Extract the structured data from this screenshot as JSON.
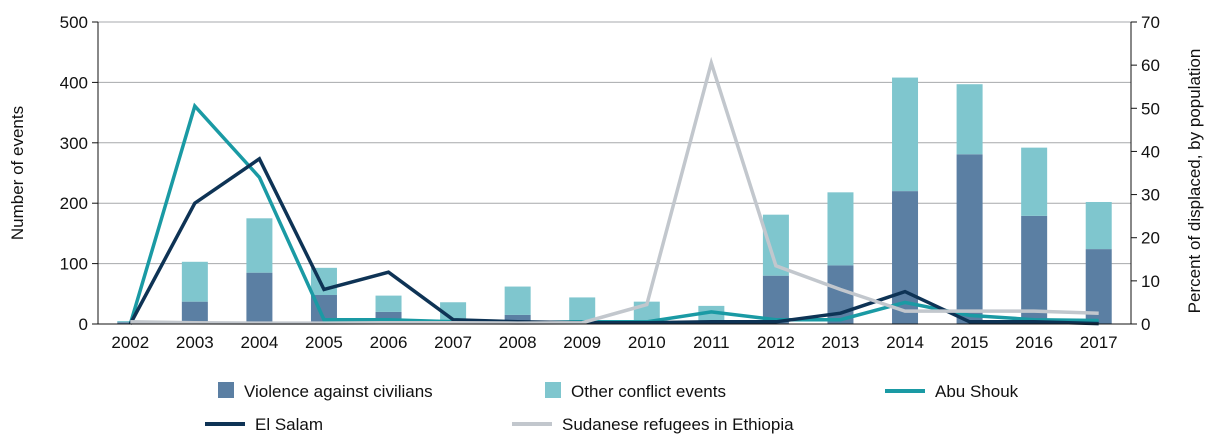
{
  "chart_data": {
    "type": "bar",
    "title": "",
    "categories": [
      "2002",
      "2003",
      "2004",
      "2005",
      "2006",
      "2007",
      "2008",
      "2009",
      "2010",
      "2011",
      "2012",
      "2013",
      "2014",
      "2015",
      "2016",
      "2017"
    ],
    "ylabel_left": "Number of events",
    "ylabel_right": "Percent of displaced, by population",
    "ylim_left": [
      0,
      500
    ],
    "yticks_left": [
      "0",
      "100",
      "200",
      "300",
      "400",
      "500"
    ],
    "ylim_right": [
      0,
      70
    ],
    "yticks_right": [
      "0",
      "10",
      "20",
      "30",
      "40",
      "50",
      "60",
      "70"
    ],
    "grid": "horizontal",
    "legend_position": "bottom",
    "bar_series": [
      {
        "name": "Violence against civilians",
        "color": "#5b7fa3",
        "values": [
          3,
          37,
          85,
          48,
          20,
          2,
          15,
          2,
          2,
          3,
          80,
          97,
          220,
          281,
          179,
          124
        ]
      },
      {
        "name": "Other conflict events",
        "color": "#7fc6ce",
        "values": [
          2,
          66,
          90,
          45,
          27,
          34,
          47,
          42,
          35,
          27,
          101,
          121,
          188,
          116,
          113,
          78
        ]
      }
    ],
    "line_series": [
      {
        "name": "Abu Shouk",
        "color": "#1a9aa4",
        "values": [
          0,
          50.5,
          34,
          1,
          1,
          0.5,
          0.3,
          0.5,
          0.5,
          2.8,
          1,
          1,
          5,
          2,
          1,
          0.8
        ]
      },
      {
        "name": "El Salam",
        "color": "#0e3355",
        "values": [
          0,
          28,
          38.3,
          8,
          12,
          1,
          0.5,
          0.3,
          0.3,
          0.5,
          0.5,
          2.5,
          7.5,
          0.5,
          0.5,
          0.1
        ]
      },
      {
        "name": "Sudanese refugees in Ethiopia",
        "color": "#c2c7cd",
        "values": [
          0.5,
          0.3,
          0.2,
          0.2,
          0.3,
          0.3,
          0.2,
          0.3,
          4.5,
          60.5,
          13.5,
          8,
          3,
          3,
          3,
          2.5
        ]
      }
    ]
  }
}
